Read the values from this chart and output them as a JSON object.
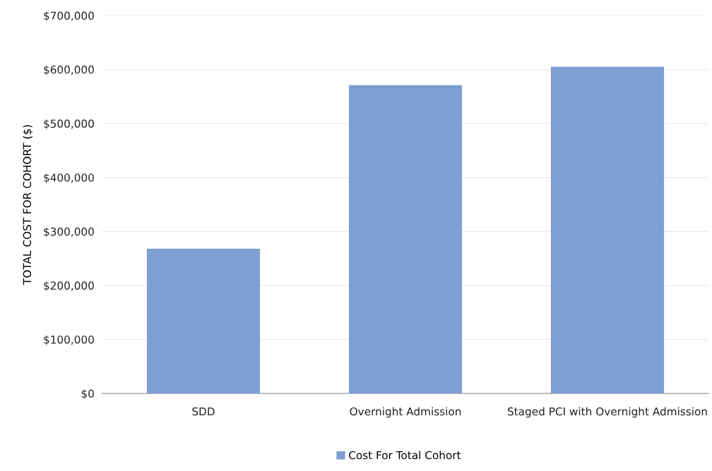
{
  "chart_data": {
    "type": "bar",
    "ylabel": "TOTAL COST FOR COHORT ($)",
    "categories": [
      "SDD",
      "Overnight Admission",
      "Staged PCI with Overnight Admission"
    ],
    "series": [
      {
        "name": "Cost For Total Cohort",
        "color": "#7f9fd3",
        "values": [
          268000,
          571000,
          605000
        ]
      }
    ],
    "ylim": [
      0,
      700000
    ],
    "yticks": [
      {
        "value": 0,
        "label": "$0"
      },
      {
        "value": 100000,
        "label": "$100,000"
      },
      {
        "value": 200000,
        "label": "$200,000"
      },
      {
        "value": 300000,
        "label": "$300,000"
      },
      {
        "value": 400000,
        "label": "$400,000"
      },
      {
        "value": 500000,
        "label": "$500,000"
      },
      {
        "value": 600000,
        "label": "$600,000"
      },
      {
        "value": 700000,
        "label": "$700,000"
      }
    ],
    "grid": "y",
    "legend": "bottom"
  }
}
